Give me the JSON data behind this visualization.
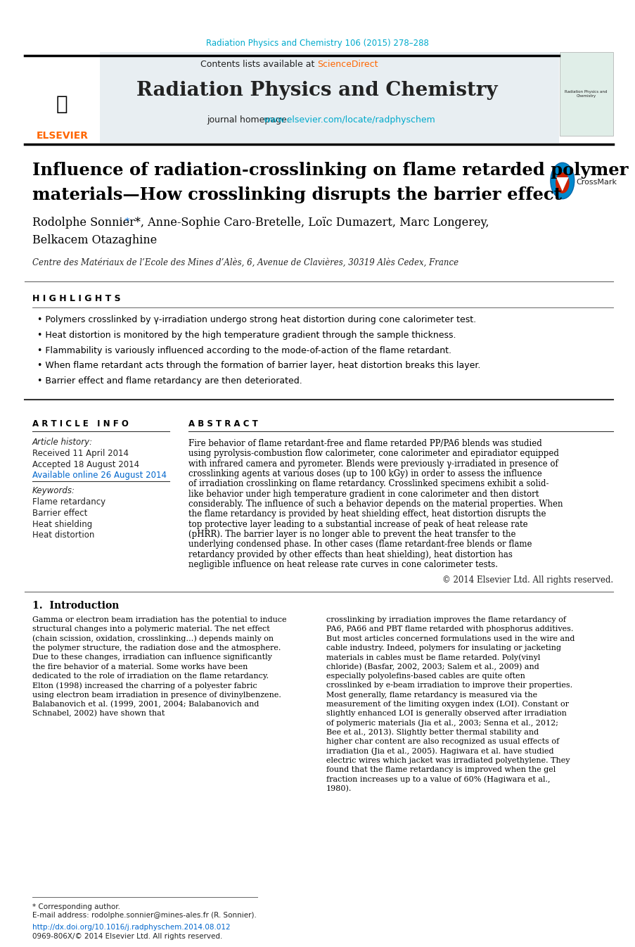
{
  "journal_ref": "Radiation Physics and Chemistry 106 (2015) 278–288",
  "journal_ref_color": "#00AACC",
  "header_bg": "#E8EEF2",
  "journal_title": "Radiation Physics and Chemistry",
  "contents_text": "Contents lists available at ",
  "sciencedirect_text": "ScienceDirect",
  "sciencedirect_color": "#FF6600",
  "homepage_text": "journal homepage: ",
  "homepage_url": "www.elsevier.com/locate/radphyschem",
  "homepage_url_color": "#00AACC",
  "paper_title_line1": "Influence of radiation-crosslinking on flame retarded polymer",
  "paper_title_line2": "materials—How crosslinking disrupts the barrier effect",
  "authors": "Rodolphe Sonnier*, Anne-Sophie Caro-Bretelle, Loïc Dumazert, Marc Longerey,",
  "authors2": "Belkacem Otazaghine",
  "affiliation": "Centre des Matériaux de l’Ecole des Mines d’Alès, 6, Avenue de Clavières, 30319 Alès Cedex, France",
  "highlights_title": "H I G H L I G H T S",
  "highlights": [
    "Polymers crosslinked by γ-irradiation undergo strong heat distortion during cone calorimeter test.",
    "Heat distortion is monitored by the high temperature gradient through the sample thickness.",
    "Flammability is variously influenced according to the mode-of-action of the flame retardant.",
    "When flame retardant acts through the formation of barrier layer, heat distortion breaks this layer.",
    "Barrier effect and flame retardancy are then deteriorated."
  ],
  "article_info_title": "A R T I C L E   I N F O",
  "article_history_label": "Article history:",
  "received": "Received 11 April 2014",
  "accepted": "Accepted 18 August 2014",
  "available": "Available online 26 August 2014",
  "keywords_label": "Keywords:",
  "keywords": [
    "Flame retardancy",
    "Barrier effect",
    "Heat shielding",
    "Heat distortion"
  ],
  "abstract_title": "A B S T R A C T",
  "abstract_text": "Fire behavior of flame retardant-free and flame retarded PP/PA6 blends was studied using pyrolysis-combustion flow calorimeter, cone calorimeter and epiradiator equipped with infrared camera and pyrometer. Blends were previously γ-irradiated in presence of crosslinking agents at various doses (up to 100 kGy) in order to assess the influence of irradiation crosslinking on flame retardancy. Crosslinked specimens exhibit a solid-like behavior under high temperature gradient in cone calorimeter and then distort considerably. The influence of such a behavior depends on the material properties. When the flame retardancy is provided by heat shielding effect, heat distortion disrupts the top protective layer leading to a substantial increase of peak of heat release rate (pHRR). The barrier layer is no longer able to prevent the heat transfer to the underlying condensed phase. In other cases (flame retardant-free blends or flame retardancy provided by other effects than heat shielding), heat distortion has negligible influence on heat release rate curves in cone calorimeter tests.",
  "copyright": "© 2014 Elsevier Ltd. All rights reserved.",
  "intro_title": "1.  Introduction",
  "intro_col1": "Gamma or electron beam irradiation has the potential to induce structural changes into a polymeric material. The net effect (chain scission, oxidation, crosslinking…) depends mainly on the polymer structure, the radiation dose and the atmosphere. Due to these changes, irradiation can influence significantly the fire behavior of a material. Some works have been dedicated to the role of irradiation on the flame retardancy. Elton (1998) increased the charring of a polyester fabric using electron beam irradiation in presence of divinylbenzene. Balabanovich et al. (1999, 2001, 2004; Balabanovich and Schnabel, 2002) have shown that",
  "intro_col2": "crosslinking by irradiation improves the flame retardancy of PA6, PA66 and PBT flame retarded with phosphorus additives.\n\nBut most articles concerned formulations used in the wire and cable industry. Indeed, polymers for insulating or jacketing materials in cables must be flame retarded. Poly(vinyl chloride) (Basfar, 2002, 2003; Salem et al., 2009) and especially polyolefins-based cables are quite often crosslinked by e-beam irradiation to improve their properties. Most generally, flame retardancy is measured via the measurement of the limiting oxygen index (LOI). Constant or slightly enhanced LOI is generally observed after irradiation of polymeric materials (Jia et al., 2003; Senna et al., 2012; Bee et al., 2013). Slightly better thermal stability and higher char content are also recognized as usual effects of irradiation (Jia et al., 2005). Hagiwara et al. have studied electric wires which jacket was irradiated polyethylene. They found that the flame retardancy is improved when the gel fraction increases up to a value of 60% (Hagiwara et al., 1980).",
  "footnote_corresponding": "* Corresponding author.",
  "footnote_email": "E-mail address: rodolphe.sonnier@mines-ales.fr (R. Sonnier).",
  "footnote_doi": "http://dx.doi.org/10.1016/j.radphyschem.2014.08.012",
  "footnote_issn": "0969-806X/© 2014 Elsevier Ltd. All rights reserved.",
  "black": "#000000",
  "dark_gray": "#222222",
  "mid_gray": "#555555",
  "light_gray": "#888888",
  "link_blue": "#0066CC",
  "header_border": "#333333"
}
